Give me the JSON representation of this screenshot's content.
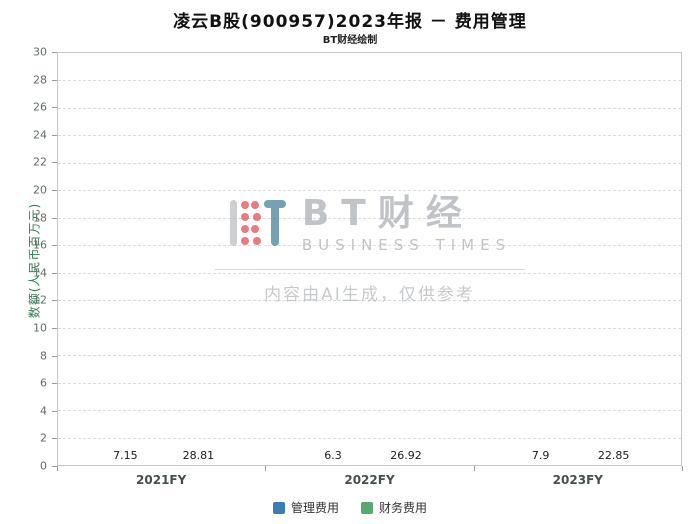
{
  "title": "凌云B股(900957)2023年报 － 费用管理",
  "subtitle": "BT财经绘制",
  "chart_data": {
    "type": "bar",
    "categories": [
      "2021FY",
      "2022FY",
      "2023FY"
    ],
    "series": [
      {
        "name": "管理费用",
        "color": "#3c7db5",
        "values": [
          7.15,
          6.3,
          7.9
        ]
      },
      {
        "name": "财务费用",
        "color": "#57a873",
        "values": [
          28.81,
          26.92,
          22.85
        ]
      }
    ],
    "title": "凌云B股(900957)2023年报 － 费用管理",
    "xlabel": "",
    "ylabel": "数额(人民币百万元)",
    "ylim": [
      0,
      30
    ],
    "ytick_step": 2,
    "grid": true,
    "legend_position": "bottom"
  },
  "watermark": {
    "brand_cn": "BT财经",
    "brand_en": "BUSINESS TIMES",
    "disclaimer": "内容由AI生成，仅供参考"
  },
  "colors": {
    "bar_blue": "#3c7db5",
    "bar_green": "#57a873",
    "grid": "#dcdcdc",
    "axis_label_green": "#2f7a52",
    "logo_red": "#e0494f",
    "logo_teal": "#3e7f96",
    "logo_gray": "#b9bec3"
  }
}
